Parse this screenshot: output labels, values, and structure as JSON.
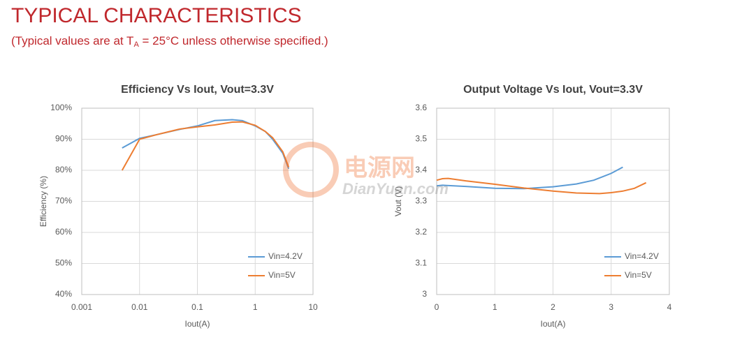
{
  "header": {
    "title": "TYPICAL CHARACTERISTICS",
    "subtitle": [
      "(Typical values are at T",
      "A",
      " = 25°C unless otherwise specified.)"
    ]
  },
  "watermark": {
    "cn": "电源网",
    "en": "DianYuan.com"
  },
  "chart_data": [
    {
      "type": "line",
      "title": "Efficiency Vs Iout, Vout=3.3V",
      "x_label": "Iout(A)",
      "y_label": "Efficiency (%)",
      "xscale": "log",
      "xlim": [
        0.001,
        10
      ],
      "xticks": [
        0.001,
        0.01,
        0.1,
        1,
        10
      ],
      "ylim": [
        40,
        100
      ],
      "yticks": [
        {
          "value": 40,
          "label": "40%"
        },
        {
          "value": 50,
          "label": "50%"
        },
        {
          "value": 60,
          "label": "60%"
        },
        {
          "value": 70,
          "label": "70%"
        },
        {
          "value": 80,
          "label": "80%"
        },
        {
          "value": 90,
          "label": "90%"
        },
        {
          "value": 100,
          "label": "100%"
        }
      ],
      "grid": true,
      "legend": "lower-right",
      "series": [
        {
          "name": "Vin=4.2V",
          "color": "#5b9bd5",
          "x": [
            0.005,
            0.01,
            0.02,
            0.05,
            0.1,
            0.2,
            0.4,
            0.6,
            1,
            1.5,
            2,
            3,
            3.8
          ],
          "values": [
            87.2,
            90.3,
            91.5,
            93.2,
            94.3,
            96,
            96.3,
            96,
            94.3,
            92.5,
            90,
            85.5,
            80.5
          ]
        },
        {
          "name": "Vin=5V",
          "color": "#ed7d31",
          "x": [
            0.005,
            0.01,
            0.02,
            0.05,
            0.1,
            0.2,
            0.4,
            0.6,
            1,
            1.5,
            2,
            3,
            3.8
          ],
          "values": [
            80,
            90,
            91.5,
            93.3,
            94,
            94.6,
            95.5,
            95.6,
            94.5,
            92.5,
            90.5,
            86,
            81
          ]
        }
      ]
    },
    {
      "type": "line",
      "title": "Output Voltage Vs Iout, Vout=3.3V",
      "x_label": "Iout(A)",
      "y_label": "Vout (V)",
      "xscale": "linear",
      "xlim": [
        0,
        4
      ],
      "xticks": [
        0,
        1,
        2,
        3,
        4
      ],
      "ylim": [
        3,
        3.6
      ],
      "yticks": [
        3,
        3.1,
        3.2,
        3.3,
        3.4,
        3.5,
        3.6
      ],
      "grid": true,
      "legend": "lower-right",
      "series": [
        {
          "name": "Vin=4.2V",
          "color": "#5b9bd5",
          "x": [
            0,
            0.1,
            0.5,
            1,
            1.5,
            2,
            2.4,
            2.7,
            3,
            3.2
          ],
          "values": [
            3.35,
            3.352,
            3.348,
            3.342,
            3.341,
            3.347,
            3.356,
            3.368,
            3.39,
            3.41
          ]
        },
        {
          "name": "Vin=5V",
          "color": "#ed7d31",
          "x": [
            0,
            0.1,
            0.2,
            0.5,
            1,
            1.5,
            2,
            2.4,
            2.8,
            3,
            3.2,
            3.4,
            3.6
          ],
          "values": [
            3.368,
            3.373,
            3.374,
            3.366,
            3.355,
            3.343,
            3.333,
            3.327,
            3.325,
            3.328,
            3.333,
            3.342,
            3.36
          ]
        }
      ]
    }
  ]
}
